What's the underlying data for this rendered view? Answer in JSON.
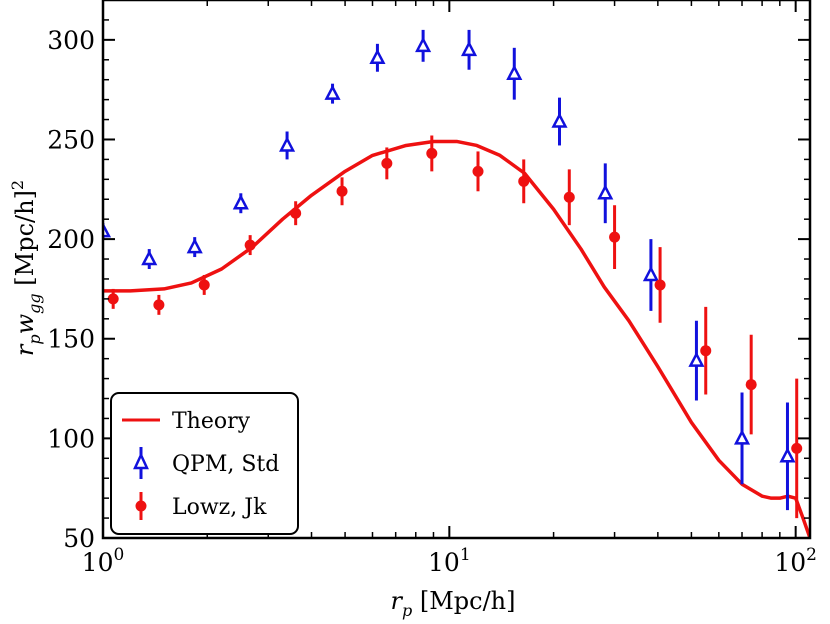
{
  "chart_data": {
    "type": "scatter",
    "title": "",
    "xlabel": "r_p [Mpc/h]",
    "ylabel": "r_p w_gg [Mpc/h]^2",
    "xscale": "log",
    "xlim": [
      1,
      110
    ],
    "ylim": [
      50,
      320
    ],
    "x_tick_labels": [
      {
        "value": 1,
        "base": "10",
        "exp": "0"
      },
      {
        "value": 10,
        "base": "10",
        "exp": "1"
      },
      {
        "value": 100,
        "base": "10",
        "exp": "2"
      }
    ],
    "y_ticks": [
      50,
      100,
      150,
      200,
      250,
      300
    ],
    "axis_label_parts": {
      "x": {
        "sym": "r",
        "sub": "p",
        "unit": " [Mpc/h]"
      },
      "y": {
        "sym1": "r",
        "sub1": "p",
        "sym2": "w",
        "sub2": "gg",
        "unit": " [Mpc/h]",
        "sup": "2"
      }
    },
    "legend_position": "bottom-left",
    "series": [
      {
        "name": "Theory",
        "kind": "line",
        "color": "#ee1111",
        "x": [
          1.0,
          1.2,
          1.5,
          1.8,
          2.2,
          2.7,
          3.3,
          4.0,
          5.0,
          6.0,
          7.5,
          9.0,
          10.5,
          12.0,
          14.0,
          16.5,
          20.0,
          24.0,
          28.0,
          33.0,
          40.0,
          50.0,
          60.0,
          70.0,
          80.0,
          85.0,
          90.0,
          95.0,
          100.0,
          105.0,
          110.0
        ],
        "y": [
          174,
          174,
          175,
          178,
          185,
          196,
          210,
          222,
          234,
          242,
          247,
          249,
          249,
          247,
          242,
          233,
          215,
          195,
          176,
          159,
          136,
          108,
          89,
          77,
          71,
          70,
          70,
          71,
          70,
          60,
          50
        ]
      },
      {
        "name": "QPM, Std",
        "kind": "errorbar",
        "marker": "triangle-open",
        "color": "#1111dd",
        "points": [
          {
            "x": 1.0,
            "y": 204,
            "err": 4
          },
          {
            "x": 1.36,
            "y": 190,
            "err": 5
          },
          {
            "x": 1.84,
            "y": 196,
            "err": 5
          },
          {
            "x": 2.5,
            "y": 218,
            "err": 5
          },
          {
            "x": 3.4,
            "y": 247,
            "err": 7
          },
          {
            "x": 4.6,
            "y": 273,
            "err": 5
          },
          {
            "x": 6.2,
            "y": 291,
            "err": 7
          },
          {
            "x": 8.4,
            "y": 297,
            "err": 8
          },
          {
            "x": 11.4,
            "y": 295,
            "err": 10
          },
          {
            "x": 15.4,
            "y": 283,
            "err": 13
          },
          {
            "x": 20.8,
            "y": 259,
            "err": 12
          },
          {
            "x": 28.2,
            "y": 223,
            "err": 15
          },
          {
            "x": 38.2,
            "y": 182,
            "err": 18
          },
          {
            "x": 51.7,
            "y": 139,
            "err": 20
          },
          {
            "x": 70.0,
            "y": 100,
            "err": 23
          },
          {
            "x": 94.7,
            "y": 91,
            "err": 27
          }
        ]
      },
      {
        "name": "Lowz, Jk",
        "kind": "errorbar",
        "marker": "circle",
        "color": "#ee1111",
        "points": [
          {
            "x": 1.07,
            "y": 170,
            "err": 5
          },
          {
            "x": 1.45,
            "y": 167,
            "err": 5
          },
          {
            "x": 1.96,
            "y": 177,
            "err": 5
          },
          {
            "x": 2.66,
            "y": 197,
            "err": 5
          },
          {
            "x": 3.6,
            "y": 213,
            "err": 6
          },
          {
            "x": 4.9,
            "y": 224,
            "err": 7
          },
          {
            "x": 6.6,
            "y": 238,
            "err": 8
          },
          {
            "x": 8.9,
            "y": 243,
            "err": 9
          },
          {
            "x": 12.1,
            "y": 234,
            "err": 10
          },
          {
            "x": 16.4,
            "y": 229,
            "err": 11
          },
          {
            "x": 22.2,
            "y": 221,
            "err": 14
          },
          {
            "x": 30.0,
            "y": 201,
            "err": 16
          },
          {
            "x": 40.6,
            "y": 177,
            "err": 19
          },
          {
            "x": 55.0,
            "y": 144,
            "err": 22
          },
          {
            "x": 74.4,
            "y": 127,
            "err": 25
          },
          {
            "x": 100.7,
            "y": 95,
            "err": 35
          }
        ]
      }
    ]
  }
}
